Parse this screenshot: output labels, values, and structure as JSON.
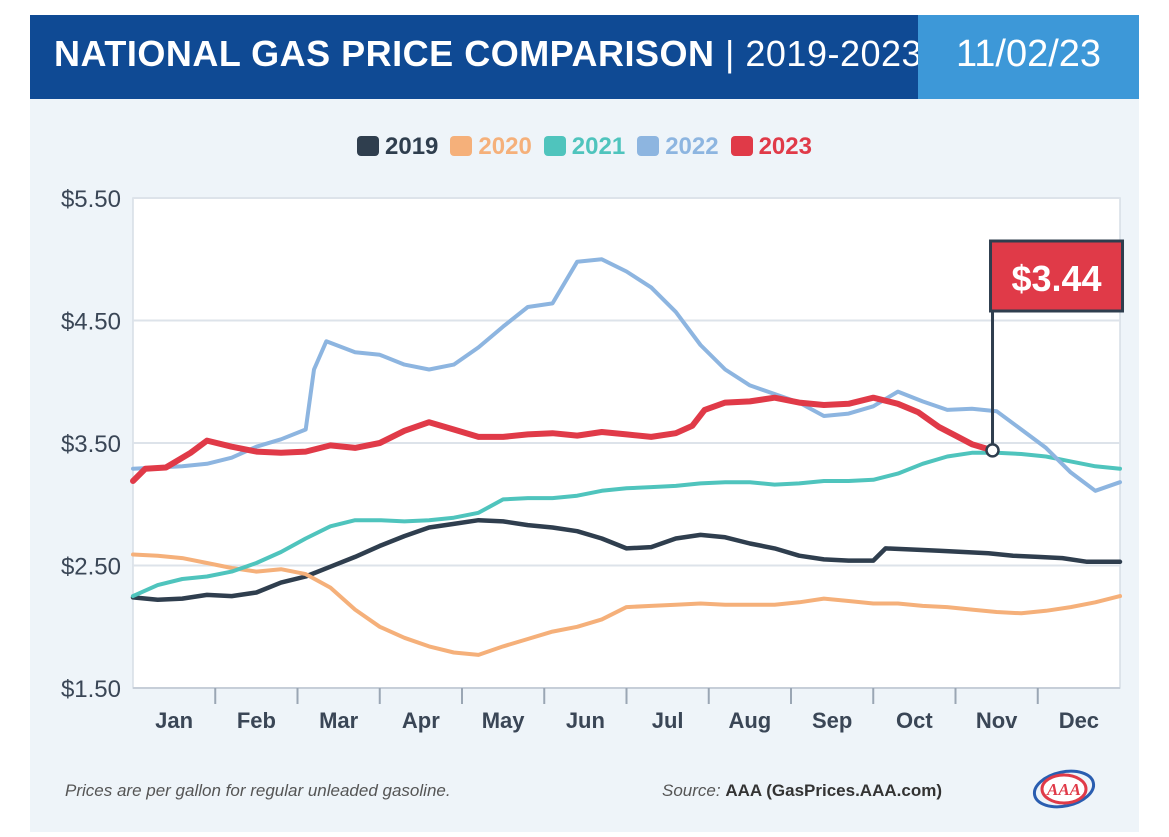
{
  "header": {
    "title_bold": "NATIONAL GAS PRICE COMPARISON",
    "title_light": " | 2019-2023",
    "date": "11/02/23",
    "title_bg": "#0f4a94",
    "date_bg": "#3d98d8"
  },
  "footer": {
    "note": "Prices are per gallon for regular unleaded gasoline.",
    "source_label": "Source:",
    "source_value": "AAA (GasPrices.AAA.com)"
  },
  "logo_icon": "aaa-logo-icon",
  "chart_data": {
    "type": "line",
    "title": "NATIONAL GAS PRICE COMPARISON | 2019-2023",
    "ylim": [
      1.5,
      5.5
    ],
    "yticks": [
      "$5.50",
      "$4.50",
      "$3.50",
      "$2.50",
      "$1.50"
    ],
    "ytick_values": [
      5.5,
      4.5,
      3.5,
      2.5,
      1.5
    ],
    "xlim": [
      0,
      12
    ],
    "categories": [
      "Jan",
      "Feb",
      "Mar",
      "Apr",
      "May",
      "Jun",
      "Jul",
      "Aug",
      "Sep",
      "Oct",
      "Nov",
      "Dec"
    ],
    "grid": true,
    "legend_position": "top-center",
    "callout": {
      "label": "$3.44",
      "series": "2023",
      "x": 10.0,
      "y": 3.44,
      "color": "#e03a48"
    },
    "series": [
      {
        "name": "2019",
        "color": "#2f3e4e",
        "points": [
          [
            0,
            2.24
          ],
          [
            0.3,
            2.22
          ],
          [
            0.6,
            2.23
          ],
          [
            0.9,
            2.26
          ],
          [
            1.2,
            2.25
          ],
          [
            1.5,
            2.28
          ],
          [
            1.8,
            2.36
          ],
          [
            2.1,
            2.41
          ],
          [
            2.4,
            2.49
          ],
          [
            2.7,
            2.57
          ],
          [
            3.0,
            2.66
          ],
          [
            3.3,
            2.74
          ],
          [
            3.6,
            2.81
          ],
          [
            3.9,
            2.84
          ],
          [
            4.2,
            2.87
          ],
          [
            4.5,
            2.86
          ],
          [
            4.8,
            2.83
          ],
          [
            5.1,
            2.81
          ],
          [
            5.4,
            2.78
          ],
          [
            5.7,
            2.72
          ],
          [
            6.0,
            2.64
          ],
          [
            6.3,
            2.65
          ],
          [
            6.6,
            2.72
          ],
          [
            6.9,
            2.75
          ],
          [
            7.2,
            2.73
          ],
          [
            7.5,
            2.68
          ],
          [
            7.8,
            2.64
          ],
          [
            8.1,
            2.58
          ],
          [
            8.4,
            2.55
          ],
          [
            8.7,
            2.54
          ],
          [
            9.0,
            2.54
          ],
          [
            9.15,
            2.64
          ],
          [
            9.5,
            2.63
          ],
          [
            9.8,
            2.62
          ],
          [
            10.1,
            2.61
          ],
          [
            10.4,
            2.6
          ],
          [
            10.7,
            2.58
          ],
          [
            11.0,
            2.57
          ],
          [
            11.3,
            2.56
          ],
          [
            11.6,
            2.53
          ],
          [
            12.0,
            2.53
          ]
        ]
      },
      {
        "name": "2020",
        "color": "#f5b07a",
        "points": [
          [
            0,
            2.59
          ],
          [
            0.3,
            2.58
          ],
          [
            0.6,
            2.56
          ],
          [
            0.9,
            2.52
          ],
          [
            1.2,
            2.48
          ],
          [
            1.5,
            2.45
          ],
          [
            1.8,
            2.47
          ],
          [
            2.1,
            2.43
          ],
          [
            2.4,
            2.32
          ],
          [
            2.7,
            2.14
          ],
          [
            3.0,
            2.0
          ],
          [
            3.3,
            1.91
          ],
          [
            3.6,
            1.84
          ],
          [
            3.9,
            1.79
          ],
          [
            4.2,
            1.77
          ],
          [
            4.5,
            1.84
          ],
          [
            4.8,
            1.9
          ],
          [
            5.1,
            1.96
          ],
          [
            5.4,
            2.0
          ],
          [
            5.7,
            2.06
          ],
          [
            6.0,
            2.16
          ],
          [
            6.3,
            2.17
          ],
          [
            6.6,
            2.18
          ],
          [
            6.9,
            2.19
          ],
          [
            7.2,
            2.18
          ],
          [
            7.5,
            2.18
          ],
          [
            7.8,
            2.18
          ],
          [
            8.1,
            2.2
          ],
          [
            8.4,
            2.23
          ],
          [
            8.7,
            2.21
          ],
          [
            9.0,
            2.19
          ],
          [
            9.3,
            2.19
          ],
          [
            9.6,
            2.17
          ],
          [
            9.9,
            2.16
          ],
          [
            10.2,
            2.14
          ],
          [
            10.5,
            2.12
          ],
          [
            10.8,
            2.11
          ],
          [
            11.1,
            2.13
          ],
          [
            11.4,
            2.16
          ],
          [
            11.7,
            2.2
          ],
          [
            12.0,
            2.25
          ]
        ]
      },
      {
        "name": "2021",
        "color": "#4fc4bd",
        "points": [
          [
            0,
            2.25
          ],
          [
            0.3,
            2.34
          ],
          [
            0.6,
            2.39
          ],
          [
            0.9,
            2.41
          ],
          [
            1.2,
            2.45
          ],
          [
            1.5,
            2.52
          ],
          [
            1.8,
            2.61
          ],
          [
            2.1,
            2.72
          ],
          [
            2.4,
            2.82
          ],
          [
            2.7,
            2.87
          ],
          [
            3.0,
            2.87
          ],
          [
            3.3,
            2.86
          ],
          [
            3.6,
            2.87
          ],
          [
            3.9,
            2.89
          ],
          [
            4.2,
            2.93
          ],
          [
            4.5,
            3.04
          ],
          [
            4.8,
            3.05
          ],
          [
            5.1,
            3.05
          ],
          [
            5.4,
            3.07
          ],
          [
            5.7,
            3.11
          ],
          [
            6.0,
            3.13
          ],
          [
            6.3,
            3.14
          ],
          [
            6.6,
            3.15
          ],
          [
            6.9,
            3.17
          ],
          [
            7.2,
            3.18
          ],
          [
            7.5,
            3.18
          ],
          [
            7.8,
            3.16
          ],
          [
            8.1,
            3.17
          ],
          [
            8.4,
            3.19
          ],
          [
            8.7,
            3.19
          ],
          [
            9.0,
            3.2
          ],
          [
            9.3,
            3.25
          ],
          [
            9.6,
            3.33
          ],
          [
            9.9,
            3.39
          ],
          [
            10.2,
            3.42
          ],
          [
            10.5,
            3.42
          ],
          [
            10.8,
            3.41
          ],
          [
            11.1,
            3.39
          ],
          [
            11.4,
            3.35
          ],
          [
            11.7,
            3.31
          ],
          [
            12.0,
            3.29
          ]
        ]
      },
      {
        "name": "2022",
        "color": "#8db5e0",
        "points": [
          [
            0,
            3.29
          ],
          [
            0.3,
            3.3
          ],
          [
            0.6,
            3.31
          ],
          [
            0.9,
            3.33
          ],
          [
            1.2,
            3.38
          ],
          [
            1.5,
            3.47
          ],
          [
            1.8,
            3.53
          ],
          [
            2.1,
            3.61
          ],
          [
            2.2,
            4.1
          ],
          [
            2.35,
            4.33
          ],
          [
            2.7,
            4.24
          ],
          [
            3.0,
            4.22
          ],
          [
            3.3,
            4.14
          ],
          [
            3.6,
            4.1
          ],
          [
            3.9,
            4.14
          ],
          [
            4.2,
            4.28
          ],
          [
            4.5,
            4.45
          ],
          [
            4.8,
            4.61
          ],
          [
            5.1,
            4.64
          ],
          [
            5.4,
            4.98
          ],
          [
            5.7,
            5.0
          ],
          [
            6.0,
            4.9
          ],
          [
            6.3,
            4.77
          ],
          [
            6.6,
            4.57
          ],
          [
            6.9,
            4.3
          ],
          [
            7.2,
            4.1
          ],
          [
            7.5,
            3.97
          ],
          [
            7.8,
            3.9
          ],
          [
            8.1,
            3.83
          ],
          [
            8.4,
            3.72
          ],
          [
            8.7,
            3.74
          ],
          [
            9.0,
            3.8
          ],
          [
            9.3,
            3.92
          ],
          [
            9.6,
            3.84
          ],
          [
            9.9,
            3.77
          ],
          [
            10.2,
            3.78
          ],
          [
            10.5,
            3.76
          ],
          [
            10.8,
            3.61
          ],
          [
            11.1,
            3.46
          ],
          [
            11.4,
            3.26
          ],
          [
            11.7,
            3.11
          ],
          [
            12.0,
            3.18
          ]
        ]
      },
      {
        "name": "2023",
        "color": "#e03a48",
        "points": [
          [
            0,
            3.19
          ],
          [
            0.15,
            3.29
          ],
          [
            0.4,
            3.3
          ],
          [
            0.7,
            3.42
          ],
          [
            0.9,
            3.52
          ],
          [
            1.2,
            3.47
          ],
          [
            1.5,
            3.43
          ],
          [
            1.8,
            3.42
          ],
          [
            2.1,
            3.43
          ],
          [
            2.4,
            3.48
          ],
          [
            2.7,
            3.46
          ],
          [
            3.0,
            3.5
          ],
          [
            3.3,
            3.6
          ],
          [
            3.6,
            3.67
          ],
          [
            3.9,
            3.61
          ],
          [
            4.2,
            3.55
          ],
          [
            4.5,
            3.55
          ],
          [
            4.8,
            3.57
          ],
          [
            5.1,
            3.58
          ],
          [
            5.4,
            3.56
          ],
          [
            5.7,
            3.59
          ],
          [
            6.0,
            3.57
          ],
          [
            6.3,
            3.55
          ],
          [
            6.6,
            3.58
          ],
          [
            6.8,
            3.64
          ],
          [
            6.95,
            3.77
          ],
          [
            7.2,
            3.83
          ],
          [
            7.5,
            3.84
          ],
          [
            7.8,
            3.87
          ],
          [
            8.1,
            3.83
          ],
          [
            8.4,
            3.81
          ],
          [
            8.7,
            3.82
          ],
          [
            9.0,
            3.87
          ],
          [
            9.3,
            3.82
          ],
          [
            9.55,
            3.75
          ],
          [
            9.8,
            3.63
          ],
          [
            10.0,
            3.56
          ],
          [
            10.2,
            3.49
          ],
          [
            10.45,
            3.44
          ]
        ]
      }
    ]
  }
}
